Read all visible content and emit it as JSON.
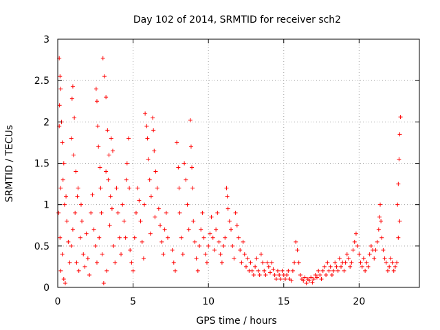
{
  "chart_data": {
    "type": "scatter",
    "title": "Day 102 of 2014, SRMTID for receiver sch2",
    "xlabel": "GPS time / hours",
    "ylabel": "SRMTID / TECUs",
    "xlim": [
      0,
      24
    ],
    "ylim": [
      0,
      3
    ],
    "xticks": [
      0,
      5,
      10,
      15,
      20
    ],
    "xtick_labels": [
      "0",
      "5",
      "10",
      "15",
      "20"
    ],
    "yticks": [
      0,
      0.5,
      1,
      1.5,
      2,
      2.5,
      3
    ],
    "ytick_labels": [
      "0",
      "0.5",
      "1",
      "1.5",
      "2",
      "2.5",
      "3"
    ],
    "grid": true,
    "marker": "+",
    "series": [
      {
        "name": "SRMTID",
        "color": "#ff0000",
        "points": [
          [
            0.1,
            2.77
          ],
          [
            0.15,
            2.55
          ],
          [
            0.2,
            2.4
          ],
          [
            0.12,
            2.2
          ],
          [
            0.25,
            2.0
          ],
          [
            0.1,
            1.95
          ],
          [
            0.3,
            1.75
          ],
          [
            0.4,
            1.5
          ],
          [
            0.2,
            1.2
          ],
          [
            0.05,
            0.9
          ],
          [
            0.15,
            0.6
          ],
          [
            0.3,
            0.4
          ],
          [
            0.2,
            0.2
          ],
          [
            0.4,
            0.1
          ],
          [
            0.5,
            0.05
          ],
          [
            0.45,
            1.0
          ],
          [
            0.6,
            0.8
          ],
          [
            0.7,
            0.55
          ],
          [
            0.8,
            0.3
          ],
          [
            0.35,
            1.3
          ],
          [
            0.55,
            1.1
          ],
          [
            1.0,
            2.43
          ],
          [
            0.95,
            2.28
          ],
          [
            1.1,
            2.05
          ],
          [
            0.9,
            1.8
          ],
          [
            1.05,
            1.6
          ],
          [
            1.2,
            1.4
          ],
          [
            1.3,
            1.1
          ],
          [
            1.15,
            0.9
          ],
          [
            1.0,
            0.7
          ],
          [
            0.9,
            0.5
          ],
          [
            1.25,
            0.3
          ],
          [
            1.4,
            0.2
          ],
          [
            1.5,
            0.6
          ],
          [
            1.6,
            0.8
          ],
          [
            1.7,
            0.4
          ],
          [
            1.8,
            0.25
          ],
          [
            1.35,
            1.2
          ],
          [
            1.55,
            1.0
          ],
          [
            1.9,
            0.65
          ],
          [
            2.0,
            0.35
          ],
          [
            2.1,
            0.15
          ],
          [
            2.3,
            1.12
          ],
          [
            2.2,
            0.9
          ],
          [
            2.4,
            0.7
          ],
          [
            2.5,
            0.5
          ],
          [
            2.6,
            0.3
          ],
          [
            2.55,
            2.4
          ],
          [
            2.6,
            2.25
          ],
          [
            2.65,
            1.95
          ],
          [
            2.7,
            1.7
          ],
          [
            2.8,
            1.45
          ],
          [
            2.85,
            1.2
          ],
          [
            2.9,
            0.9
          ],
          [
            2.75,
            0.6
          ],
          [
            2.95,
            0.4
          ],
          [
            3.0,
            2.77
          ],
          [
            3.1,
            2.55
          ],
          [
            3.2,
            2.3
          ],
          [
            3.3,
            1.9
          ],
          [
            3.4,
            1.6
          ],
          [
            3.2,
            1.4
          ],
          [
            3.35,
            1.3
          ],
          [
            3.5,
            1.1
          ],
          [
            3.6,
            0.95
          ],
          [
            3.45,
            0.75
          ],
          [
            3.7,
            0.5
          ],
          [
            3.8,
            0.3
          ],
          [
            3.55,
            1.8
          ],
          [
            3.65,
            1.65
          ],
          [
            3.9,
            1.2
          ],
          [
            4.0,
            0.9
          ],
          [
            4.1,
            0.6
          ],
          [
            4.2,
            0.4
          ],
          [
            3.25,
            0.2
          ],
          [
            3.05,
            0.05
          ],
          [
            4.3,
            1.0
          ],
          [
            4.4,
            0.8
          ],
          [
            4.5,
            0.6
          ],
          [
            4.55,
            1.3
          ],
          [
            4.6,
            1.5
          ],
          [
            4.7,
            1.8
          ],
          [
            4.75,
            1.2
          ],
          [
            4.8,
            0.45
          ],
          [
            4.9,
            0.3
          ],
          [
            5.0,
            0.2
          ],
          [
            5.1,
            0.6
          ],
          [
            5.2,
            0.9
          ],
          [
            5.3,
            1.2
          ],
          [
            5.4,
            1.05
          ],
          [
            5.5,
            0.8
          ],
          [
            5.6,
            0.55
          ],
          [
            5.7,
            0.35
          ],
          [
            5.8,
            2.1
          ],
          [
            5.9,
            1.95
          ],
          [
            5.95,
            1.8
          ],
          [
            6.0,
            1.55
          ],
          [
            6.1,
            1.3
          ],
          [
            6.2,
            1.1
          ],
          [
            6.3,
            2.05
          ],
          [
            6.35,
            1.9
          ],
          [
            6.4,
            1.65
          ],
          [
            6.5,
            1.4
          ],
          [
            6.6,
            1.2
          ],
          [
            6.7,
            0.95
          ],
          [
            6.8,
            0.75
          ],
          [
            6.9,
            0.55
          ],
          [
            7.0,
            0.4
          ],
          [
            7.1,
            0.7
          ],
          [
            7.2,
            0.9
          ],
          [
            7.3,
            0.6
          ],
          [
            6.45,
            0.85
          ],
          [
            6.15,
            0.65
          ],
          [
            5.75,
            1.0
          ],
          [
            7.6,
            0.45
          ],
          [
            7.7,
            0.3
          ],
          [
            7.8,
            0.2
          ],
          [
            7.9,
            1.75
          ],
          [
            8.0,
            1.45
          ],
          [
            8.05,
            1.2
          ],
          [
            8.1,
            0.9
          ],
          [
            8.2,
            0.6
          ],
          [
            8.3,
            0.4
          ],
          [
            8.4,
            1.5
          ],
          [
            8.5,
            1.3
          ],
          [
            8.6,
            1.0
          ],
          [
            8.7,
            0.7
          ],
          [
            8.8,
            2.02
          ],
          [
            8.85,
            1.7
          ],
          [
            8.9,
            1.45
          ],
          [
            8.95,
            1.2
          ],
          [
            9.0,
            0.8
          ],
          [
            9.1,
            0.55
          ],
          [
            9.2,
            0.35
          ],
          [
            9.3,
            0.2
          ],
          [
            9.4,
            0.5
          ],
          [
            9.5,
            0.7
          ],
          [
            9.6,
            0.9
          ],
          [
            9.7,
            0.6
          ],
          [
            9.8,
            0.4
          ],
          [
            9.9,
            0.3
          ],
          [
            10.0,
            0.5
          ],
          [
            10.1,
            0.65
          ],
          [
            10.2,
            0.85
          ],
          [
            10.3,
            0.6
          ],
          [
            10.4,
            0.45
          ],
          [
            10.5,
            0.7
          ],
          [
            10.6,
            0.9
          ],
          [
            10.7,
            0.55
          ],
          [
            10.8,
            0.4
          ],
          [
            10.9,
            0.3
          ],
          [
            11.0,
            0.5
          ],
          [
            11.1,
            0.6
          ],
          [
            11.2,
            1.2
          ],
          [
            11.25,
            1.1
          ],
          [
            11.3,
            0.95
          ],
          [
            11.4,
            0.8
          ],
          [
            11.5,
            0.7
          ],
          [
            11.6,
            0.5
          ],
          [
            11.7,
            0.35
          ],
          [
            11.8,
            0.9
          ],
          [
            11.9,
            0.75
          ],
          [
            12.0,
            0.6
          ],
          [
            12.1,
            0.45
          ],
          [
            12.2,
            0.3
          ],
          [
            12.3,
            0.55
          ],
          [
            12.4,
            0.4
          ],
          [
            12.5,
            0.25
          ],
          [
            12.6,
            0.35
          ],
          [
            12.7,
            0.2
          ],
          [
            12.8,
            0.3
          ],
          [
            12.9,
            0.2
          ],
          [
            13.0,
            0.15
          ],
          [
            13.1,
            0.25
          ],
          [
            13.2,
            0.35
          ],
          [
            13.3,
            0.2
          ],
          [
            13.4,
            0.15
          ],
          [
            13.5,
            0.4
          ],
          [
            13.6,
            0.3
          ],
          [
            13.7,
            0.2
          ],
          [
            13.8,
            0.15
          ],
          [
            13.9,
            0.3
          ],
          [
            14.0,
            0.25
          ],
          [
            14.1,
            0.18
          ],
          [
            14.2,
            0.3
          ],
          [
            14.3,
            0.22
          ],
          [
            14.4,
            0.15
          ],
          [
            14.5,
            0.1
          ],
          [
            14.6,
            0.2
          ],
          [
            14.7,
            0.15
          ],
          [
            14.8,
            0.1
          ],
          [
            14.9,
            0.2
          ],
          [
            15.0,
            0.15
          ],
          [
            15.1,
            0.1
          ],
          [
            15.2,
            0.15
          ],
          [
            15.3,
            0.2
          ],
          [
            15.4,
            0.1
          ],
          [
            15.5,
            0.08
          ],
          [
            15.6,
            0.2
          ],
          [
            15.7,
            0.3
          ],
          [
            15.8,
            0.55
          ],
          [
            15.9,
            0.45
          ],
          [
            16.0,
            0.3
          ],
          [
            16.1,
            0.15
          ],
          [
            16.2,
            0.1
          ],
          [
            16.3,
            0.08
          ],
          [
            16.4,
            0.12
          ],
          [
            16.5,
            0.05
          ],
          [
            16.6,
            0.1
          ],
          [
            16.7,
            0.08
          ],
          [
            16.8,
            0.12
          ],
          [
            16.9,
            0.06
          ],
          [
            17.0,
            0.1
          ],
          [
            17.1,
            0.15
          ],
          [
            17.2,
            0.12
          ],
          [
            17.3,
            0.2
          ],
          [
            17.4,
            0.15
          ],
          [
            17.5,
            0.1
          ],
          [
            17.6,
            0.2
          ],
          [
            17.7,
            0.25
          ],
          [
            17.8,
            0.15
          ],
          [
            17.9,
            0.3
          ],
          [
            18.0,
            0.2
          ],
          [
            18.1,
            0.25
          ],
          [
            18.2,
            0.15
          ],
          [
            18.3,
            0.2
          ],
          [
            18.4,
            0.3
          ],
          [
            18.5,
            0.25
          ],
          [
            18.6,
            0.2
          ],
          [
            18.7,
            0.35
          ],
          [
            18.8,
            0.25
          ],
          [
            18.9,
            0.3
          ],
          [
            19.0,
            0.2
          ],
          [
            19.1,
            0.3
          ],
          [
            19.2,
            0.4
          ],
          [
            19.3,
            0.35
          ],
          [
            19.4,
            0.25
          ],
          [
            19.5,
            0.3
          ],
          [
            19.6,
            0.45
          ],
          [
            19.7,
            0.55
          ],
          [
            19.8,
            0.65
          ],
          [
            19.9,
            0.5
          ],
          [
            20.0,
            0.4
          ],
          [
            20.1,
            0.3
          ],
          [
            20.2,
            0.25
          ],
          [
            20.3,
            0.35
          ],
          [
            20.4,
            0.2
          ],
          [
            20.5,
            0.3
          ],
          [
            20.6,
            0.25
          ],
          [
            20.7,
            0.4
          ],
          [
            20.8,
            0.5
          ],
          [
            20.9,
            0.45
          ],
          [
            21.0,
            0.35
          ],
          [
            21.1,
            0.45
          ],
          [
            21.2,
            0.55
          ],
          [
            21.3,
            0.7
          ],
          [
            21.35,
            0.85
          ],
          [
            21.4,
            1.0
          ],
          [
            21.45,
            0.8
          ],
          [
            21.5,
            0.6
          ],
          [
            21.6,
            0.45
          ],
          [
            21.7,
            0.35
          ],
          [
            21.8,
            0.3
          ],
          [
            21.9,
            0.2
          ],
          [
            22.0,
            0.25
          ],
          [
            22.1,
            0.35
          ],
          [
            22.2,
            0.3
          ],
          [
            22.3,
            0.2
          ],
          [
            22.4,
            0.25
          ],
          [
            22.5,
            0.3
          ],
          [
            22.55,
            1.0
          ],
          [
            22.6,
            1.25
          ],
          [
            22.65,
            1.55
          ],
          [
            22.7,
            1.85
          ],
          [
            22.75,
            2.06
          ],
          [
            22.6,
            0.6
          ],
          [
            22.7,
            0.8
          ]
        ]
      }
    ]
  }
}
